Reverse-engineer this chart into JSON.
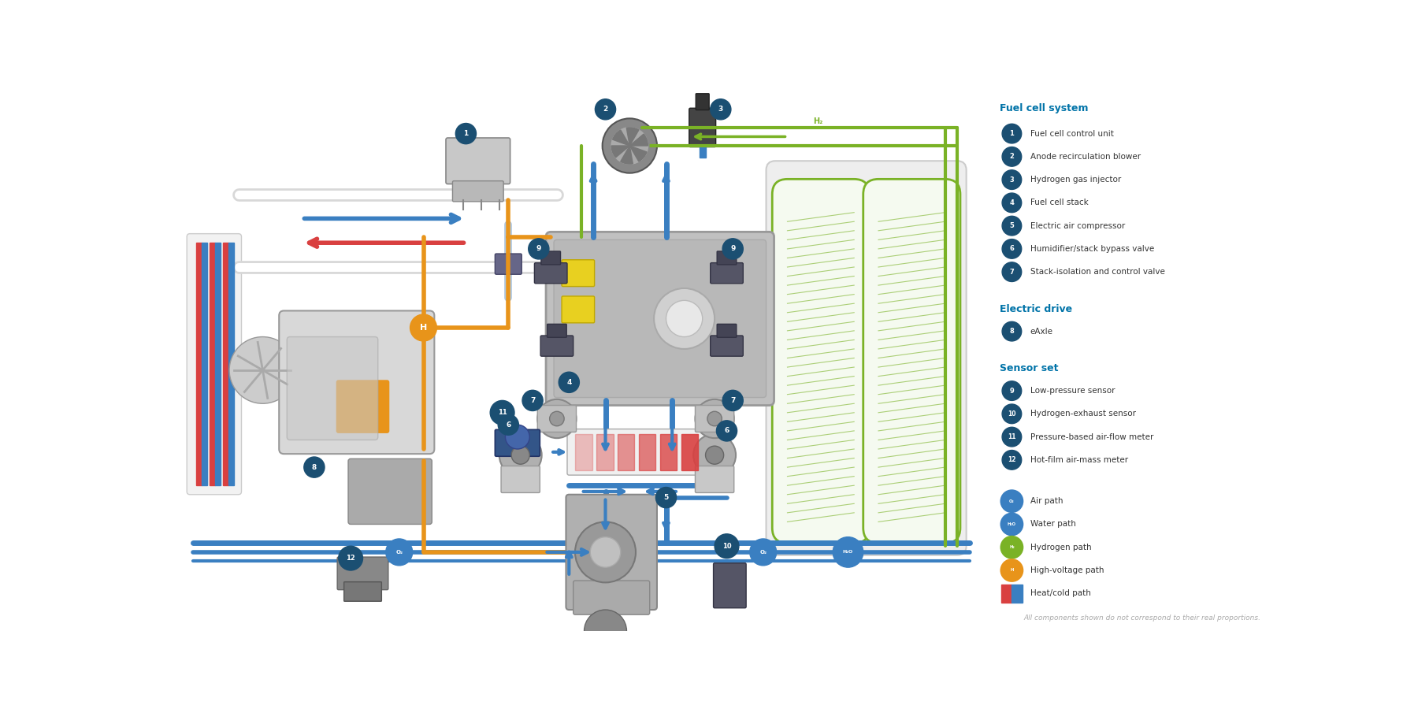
{
  "bg_color": "#ffffff",
  "legend_title_color": "#0073a8",
  "legend_item_color": "#333333",
  "circle_color": "#1b4f72",
  "blue_path_color": "#3a7fc1",
  "green_path_color": "#7ab226",
  "orange_path_color": "#e8941a",
  "heat_red": "#d94040",
  "heat_blue": "#3a7fc1",
  "gray_light": "#e0e0e0",
  "gray_mid": "#b0b0b0",
  "gray_dark": "#888888",
  "disclaimer": "All components shown do not correspond to their real proportions.",
  "fuel_cell_system_items": [
    {
      "num": "1",
      "text": "Fuel cell control unit"
    },
    {
      "num": "2",
      "text": "Anode recirculation blower"
    },
    {
      "num": "3",
      "text": "Hydrogen gas injector"
    },
    {
      "num": "4",
      "text": "Fuel cell stack"
    },
    {
      "num": "5",
      "text": "Electric air compressor"
    },
    {
      "num": "6",
      "text": "Humidifier/stack bypass valve"
    },
    {
      "num": "7",
      "text": "Stack-isolation and control valve"
    }
  ],
  "electric_drive_items": [
    {
      "num": "8",
      "text": "eAxle"
    }
  ],
  "sensor_set_items": [
    {
      "num": "9",
      "text": "Low-pressure sensor"
    },
    {
      "num": "10",
      "text": "Hydrogen-exhaust sensor"
    },
    {
      "num": "11",
      "text": "Pressure-based air-flow meter"
    },
    {
      "num": "12",
      "text": "Hot-film air-mass meter"
    }
  ]
}
